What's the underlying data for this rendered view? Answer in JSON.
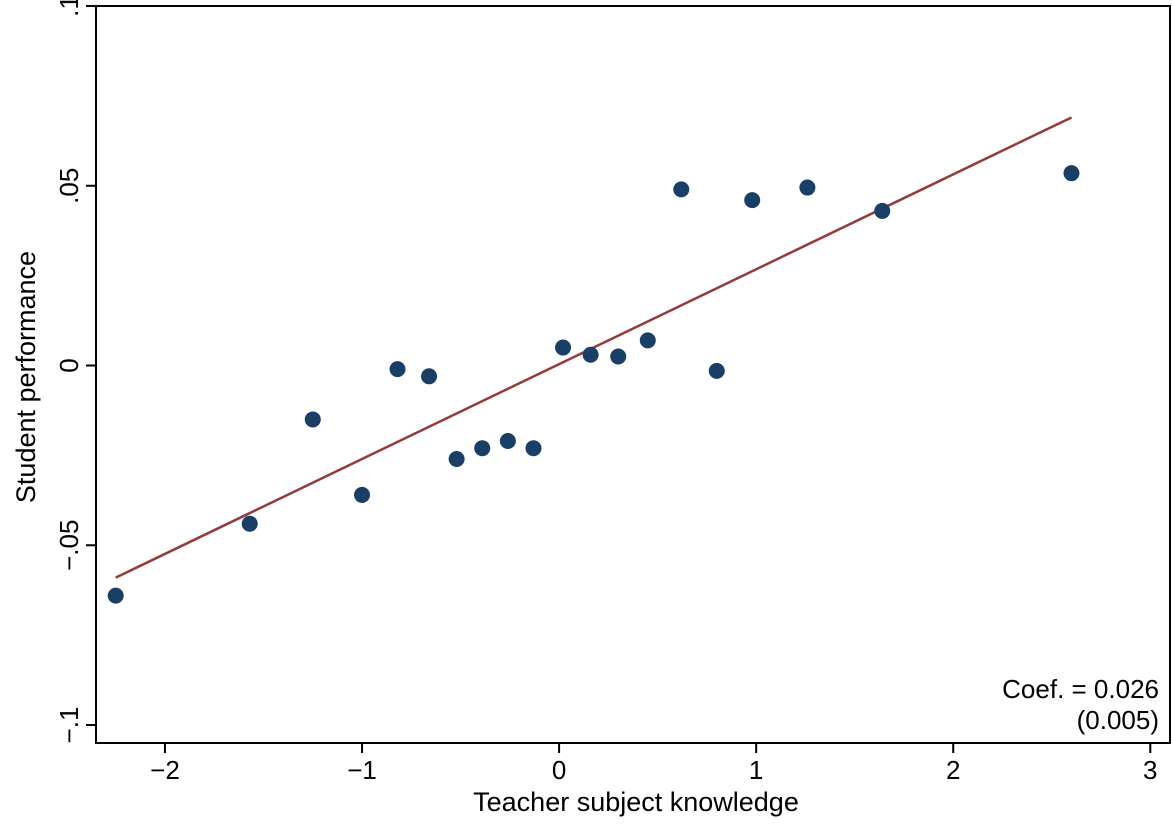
{
  "chart_data": {
    "type": "scatter",
    "title": "",
    "xlabel": "Teacher subject knowledge",
    "ylabel": "Student performance",
    "xlim": [
      -2.35,
      3.1
    ],
    "ylim": [
      -0.105,
      0.1
    ],
    "xticks": [
      -2,
      -1,
      0,
      1,
      2,
      3
    ],
    "xtick_labels": [
      "−2",
      "−1",
      "0",
      "1",
      "2",
      "3"
    ],
    "yticks": [
      -0.1,
      -0.05,
      0,
      0.05,
      0.1
    ],
    "ytick_labels": [
      "−.1",
      "−.05",
      "0",
      ".05",
      ".1"
    ],
    "grid": false,
    "points": {
      "color": "#1a3f66",
      "x": [
        -2.25,
        -1.57,
        -1.25,
        -1.0,
        -0.82,
        -0.66,
        -0.52,
        -0.39,
        -0.26,
        -0.13,
        0.02,
        0.16,
        0.3,
        0.45,
        0.62,
        0.8,
        0.98,
        1.26,
        1.64,
        2.6
      ],
      "y": [
        -0.064,
        -0.044,
        -0.015,
        -0.036,
        -0.001,
        -0.003,
        -0.026,
        -0.023,
        -0.021,
        -0.023,
        0.005,
        0.003,
        0.0025,
        0.007,
        0.049,
        -0.0015,
        0.046,
        0.0495,
        0.043,
        0.0535
      ]
    },
    "fit_line": {
      "color": "#943a3a",
      "x": [
        -2.25,
        2.6
      ],
      "y": [
        -0.059,
        0.069
      ]
    },
    "annotation": {
      "line1": "Coef. = 0.026",
      "line2": "(0.005)"
    }
  }
}
